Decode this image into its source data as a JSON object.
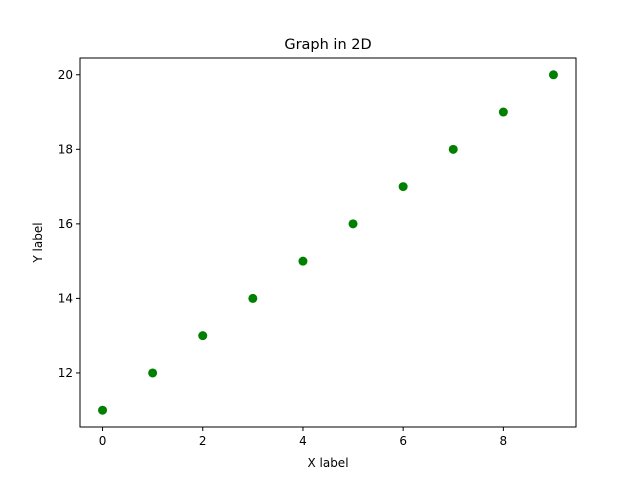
{
  "chart_data": {
    "type": "scatter",
    "title": "Graph in 2D",
    "xlabel": "X label",
    "ylabel": "Y label",
    "x": [
      0,
      1,
      2,
      3,
      4,
      5,
      6,
      7,
      8,
      9
    ],
    "y": [
      11,
      12,
      13,
      14,
      15,
      16,
      17,
      18,
      19,
      20
    ],
    "xlim": [
      -0.45,
      9.45
    ],
    "ylim": [
      10.55,
      20.45
    ],
    "xticks": [
      0,
      2,
      4,
      6,
      8
    ],
    "yticks": [
      12,
      14,
      16,
      18,
      20
    ],
    "xtick_labels": [
      "0",
      "2",
      "4",
      "6",
      "8"
    ],
    "ytick_labels": [
      "12",
      "14",
      "16",
      "18",
      "20"
    ],
    "marker_color": "#008000",
    "grid": false,
    "legend": false
  }
}
